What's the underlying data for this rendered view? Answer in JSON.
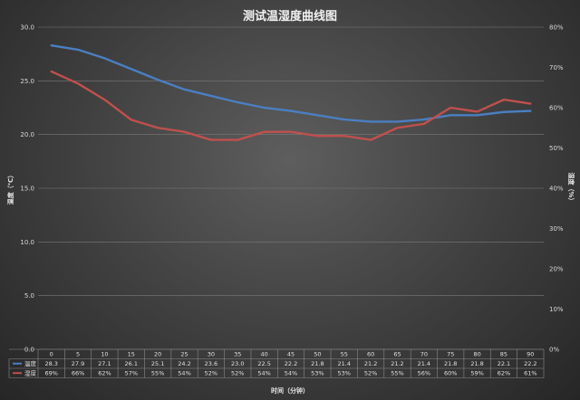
{
  "chart_data": {
    "type": "line",
    "title": "测试温湿度曲线图",
    "xlabel": "时间（分钟）",
    "ylabel_left": "温度（℃）",
    "ylabel_right": "湿度（%）",
    "x": [
      "0",
      "5",
      "10",
      "15",
      "20",
      "25",
      "30",
      "35",
      "40",
      "45",
      "50",
      "55",
      "60",
      "65",
      "70",
      "75",
      "80",
      "85",
      "90"
    ],
    "y_left": {
      "min": 0,
      "max": 30,
      "ticks": [
        "0.0",
        "5.0",
        "10.0",
        "15.0",
        "20.0",
        "25.0",
        "30.0"
      ]
    },
    "y_right": {
      "min": 0,
      "max": 80,
      "ticks": [
        "0%",
        "10%",
        "20%",
        "30%",
        "40%",
        "50%",
        "60%",
        "70%",
        "80%"
      ]
    },
    "grid": true,
    "series": [
      {
        "name": "温度",
        "axis": "left",
        "color": "#4a7fc1",
        "values": [
          28.3,
          27.9,
          27.1,
          26.1,
          25.1,
          24.2,
          23.6,
          23.0,
          22.5,
          22.2,
          21.8,
          21.4,
          21.2,
          21.2,
          21.4,
          21.8,
          21.8,
          22.1,
          22.2
        ],
        "labels": [
          "28.3",
          "27.9",
          "27.1",
          "26.1",
          "25.1",
          "24.2",
          "23.6",
          "23.0",
          "22.5",
          "22.2",
          "21.8",
          "21.4",
          "21.2",
          "21.2",
          "21.4",
          "21.8",
          "21.8",
          "22.1",
          "22.2"
        ]
      },
      {
        "name": "湿度",
        "axis": "right",
        "color": "#c0504d",
        "values": [
          69,
          66,
          62,
          57,
          55,
          54,
          52,
          52,
          54,
          54,
          53,
          53,
          52,
          55,
          56,
          60,
          59,
          62,
          61
        ],
        "labels": [
          "69%",
          "66%",
          "62%",
          "57%",
          "55%",
          "54%",
          "52%",
          "52%",
          "54%",
          "54%",
          "53%",
          "53%",
          "52%",
          "55%",
          "56%",
          "60%",
          "59%",
          "62%",
          "61%"
        ]
      }
    ],
    "legend": "data-table"
  }
}
